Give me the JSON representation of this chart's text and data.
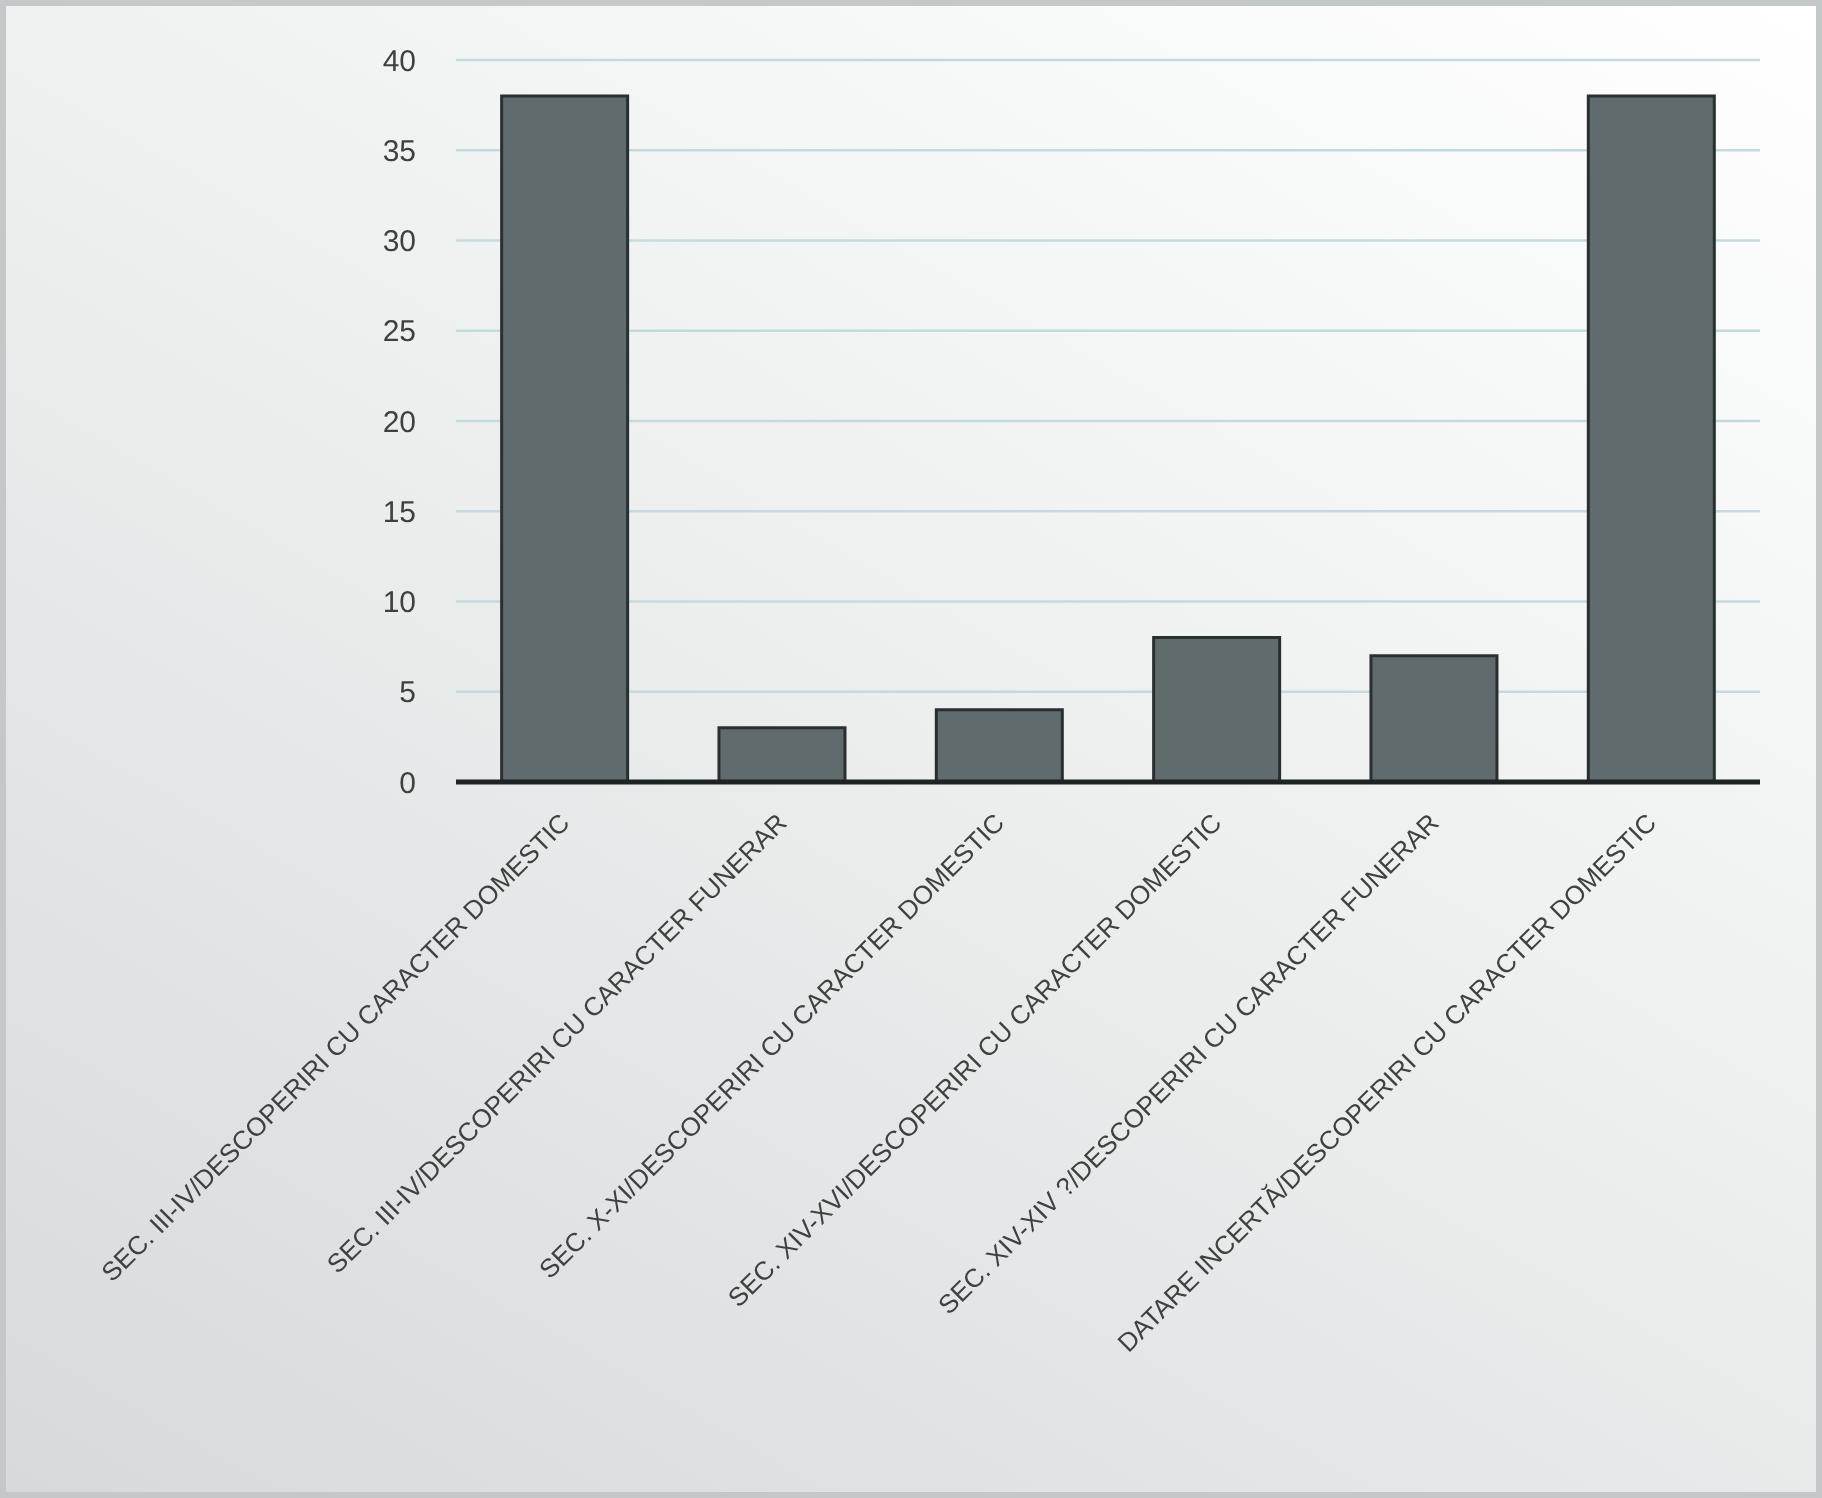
{
  "chart_data": {
    "type": "bar",
    "categories": [
      "SEC. III-IV/DESCOPERIRI CU CARACTER DOMESTIC",
      "SEC. III-IV/DESCOPERIRI CU CARACTER FUNERAR",
      "SEC. X-XI/DESCOPERIRI CU CARACTER DOMESTIC",
      "SEC. XIV-XVI/DESCOPERIRI CU CARACTER DOMESTIC",
      "SEC. XIV-XIV ?/DESCOPERIRI CU CARACTER FUNERAR",
      "DATARE INCERTĂ/DESCOPERIRI CU CARACTER DOMESTIC"
    ],
    "values": [
      38,
      3,
      4,
      8,
      7,
      38
    ],
    "color": "#5f6b6d",
    "ylim": [
      0,
      40
    ],
    "yticks": [
      0,
      5,
      10,
      15,
      20,
      25,
      30,
      35,
      40
    ],
    "grid": "y"
  }
}
